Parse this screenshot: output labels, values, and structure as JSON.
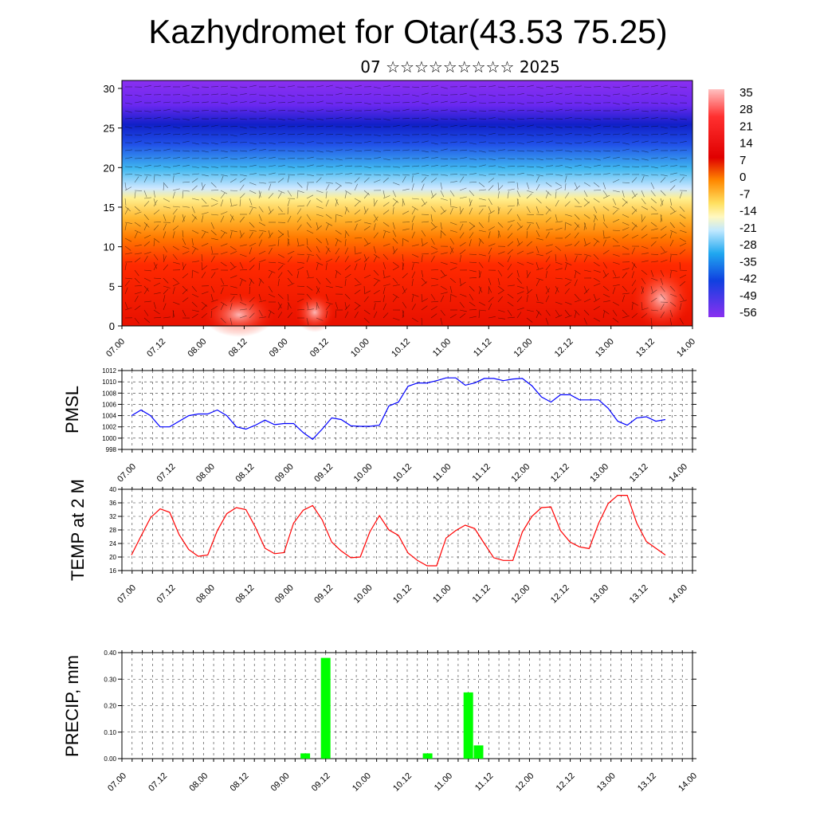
{
  "title": "Kazhydromet for Otar(43.53 75.25)",
  "subtitle": "07 ☆☆☆☆☆☆☆☆☆ 2025",
  "time_labels": [
    "07.00",
    "07.12",
    "08.00",
    "08.12",
    "09.00",
    "09.12",
    "10.00",
    "10.12",
    "11.00",
    "11.12",
    "12.00",
    "12.12",
    "13.00",
    "13.12",
    "14.00"
  ],
  "chart_data": [
    {
      "type": "heatmap",
      "name_in_figure": "temperature/wind cross-section",
      "x": [
        "07.00",
        "07.12",
        "08.00",
        "08.12",
        "09.00",
        "09.12",
        "10.00",
        "10.12",
        "11.00",
        "11.12",
        "12.00",
        "12.12",
        "13.00",
        "13.12",
        "14.00"
      ],
      "y_ticks": [
        0,
        5,
        10,
        15,
        20,
        25,
        30
      ],
      "ylim": [
        0,
        31
      ],
      "colorbar_labels": [
        "35",
        "28",
        "21",
        "14",
        "7",
        "0",
        "-7",
        "-14",
        "-21",
        "-28",
        "-35",
        "-42",
        "-49",
        "-56"
      ],
      "colors": {
        "hot": "#ff1a00",
        "orange": "#ff9900",
        "yellow": "#fff08a",
        "cyan": "#33bbee",
        "blue": "#2030e0",
        "violet": "#8a30f0"
      }
    },
    {
      "type": "line",
      "ylabel": "PMSL",
      "ylim": [
        998,
        1012
      ],
      "y_ticks": [
        998,
        1000,
        1002,
        1004,
        1006,
        1008,
        1010,
        1012
      ],
      "series": [
        {
          "color": "#0000ff",
          "values": [
            1004,
            1005,
            1004,
            1002,
            1002,
            1003,
            1004,
            1004.3,
            1004.3,
            1005,
            1004,
            1002,
            1001.6,
            1002.3,
            1003.2,
            1002.4,
            1002.6,
            1002.6,
            1001,
            999.8,
            1001.6,
            1003.6,
            1003.3,
            1002.2,
            1002.1,
            1002.1,
            1002.3,
            1005.7,
            1006.4,
            1009.2,
            1009.8,
            1009.8,
            1010.2,
            1010.7,
            1010.7,
            1009.4,
            1009.8,
            1010.6,
            1010.6,
            1010.2,
            1010.5,
            1010.6,
            1009.3,
            1007.3,
            1006.4,
            1007.7,
            1007.7,
            1006.8,
            1006.8,
            1006.8,
            1005.3,
            1003,
            1002.3,
            1003.6,
            1003.8,
            1003,
            1003.3
          ]
        }
      ]
    },
    {
      "type": "line",
      "ylabel": "TEMP at 2 M",
      "ylim": [
        16,
        40
      ],
      "y_ticks": [
        16,
        20,
        24,
        28,
        32,
        36,
        40
      ],
      "series": [
        {
          "color": "#ff0000",
          "values": [
            20.6,
            26.2,
            31.6,
            34.2,
            33.2,
            26.6,
            22.2,
            20.2,
            20.6,
            27.8,
            32.8,
            34.6,
            34.0,
            28.8,
            22.6,
            21.0,
            21.3,
            30.0,
            33.8,
            35.2,
            31.0,
            24.4,
            21.8,
            19.8,
            20.0,
            27.4,
            32.2,
            28.0,
            26.4,
            21.2,
            19.0,
            17.4,
            17.4,
            25.6,
            27.8,
            29.4,
            28.4,
            24.0,
            19.8,
            19.0,
            19.0,
            27.4,
            32.0,
            34.6,
            34.8,
            27.8,
            24.4,
            23.0,
            22.5,
            30.0,
            35.8,
            38.2,
            38.2,
            30.0,
            24.6,
            22.6,
            20.6
          ]
        }
      ]
    },
    {
      "type": "bar",
      "ylabel": "PRECIP, mm",
      "ylim": [
        0,
        0.4
      ],
      "y_ticks": [
        "0.00",
        "0.10",
        "0.20",
        "0.30",
        "0.40"
      ],
      "color": "#00ff00",
      "bars": [
        {
          "x": "09.06",
          "value": 0.02
        },
        {
          "x": "09.12",
          "value": 0.38
        },
        {
          "x": "10.18",
          "value": 0.02
        },
        {
          "x": "11.06",
          "value": 0.25
        },
        {
          "x": "11.09",
          "value": 0.05
        }
      ]
    }
  ]
}
